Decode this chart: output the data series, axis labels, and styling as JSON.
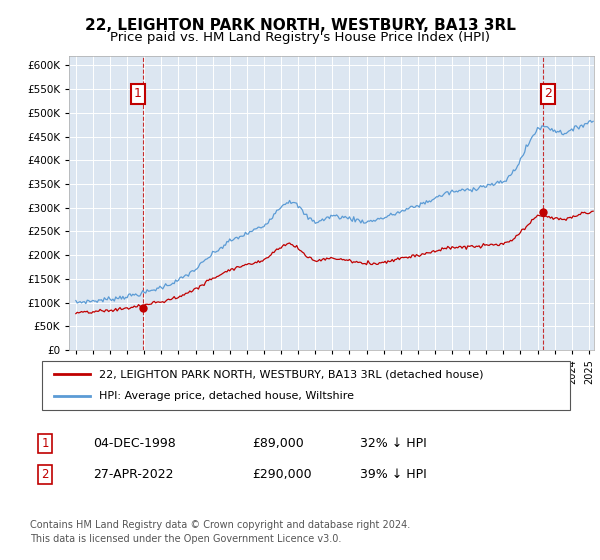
{
  "title": "22, LEIGHTON PARK NORTH, WESTBURY, BA13 3RL",
  "subtitle": "Price paid vs. HM Land Registry's House Price Index (HPI)",
  "ylim": [
    0,
    620000
  ],
  "yticks": [
    0,
    50000,
    100000,
    150000,
    200000,
    250000,
    300000,
    350000,
    400000,
    450000,
    500000,
    550000,
    600000
  ],
  "bg_color": "#dce6f1",
  "line_color_hpi": "#5b9bd5",
  "line_color_price": "#c00000",
  "annotation_color": "#c00000",
  "sale1_date_x": 1998.92,
  "sale1_y": 89000,
  "sale2_date_x": 2022.32,
  "sale2_y": 290000,
  "legend_label1": "22, LEIGHTON PARK NORTH, WESTBURY, BA13 3RL (detached house)",
  "legend_label2": "HPI: Average price, detached house, Wiltshire",
  "table_row1": [
    "1",
    "04-DEC-1998",
    "£89,000",
    "32% ↓ HPI"
  ],
  "table_row2": [
    "2",
    "27-APR-2022",
    "£290,000",
    "39% ↓ HPI"
  ],
  "footnote": "Contains HM Land Registry data © Crown copyright and database right 2024.\nThis data is licensed under the Open Government Licence v3.0.",
  "title_fontsize": 11,
  "subtitle_fontsize": 9.5,
  "xmin": 1995.0,
  "xmax": 2025.3
}
